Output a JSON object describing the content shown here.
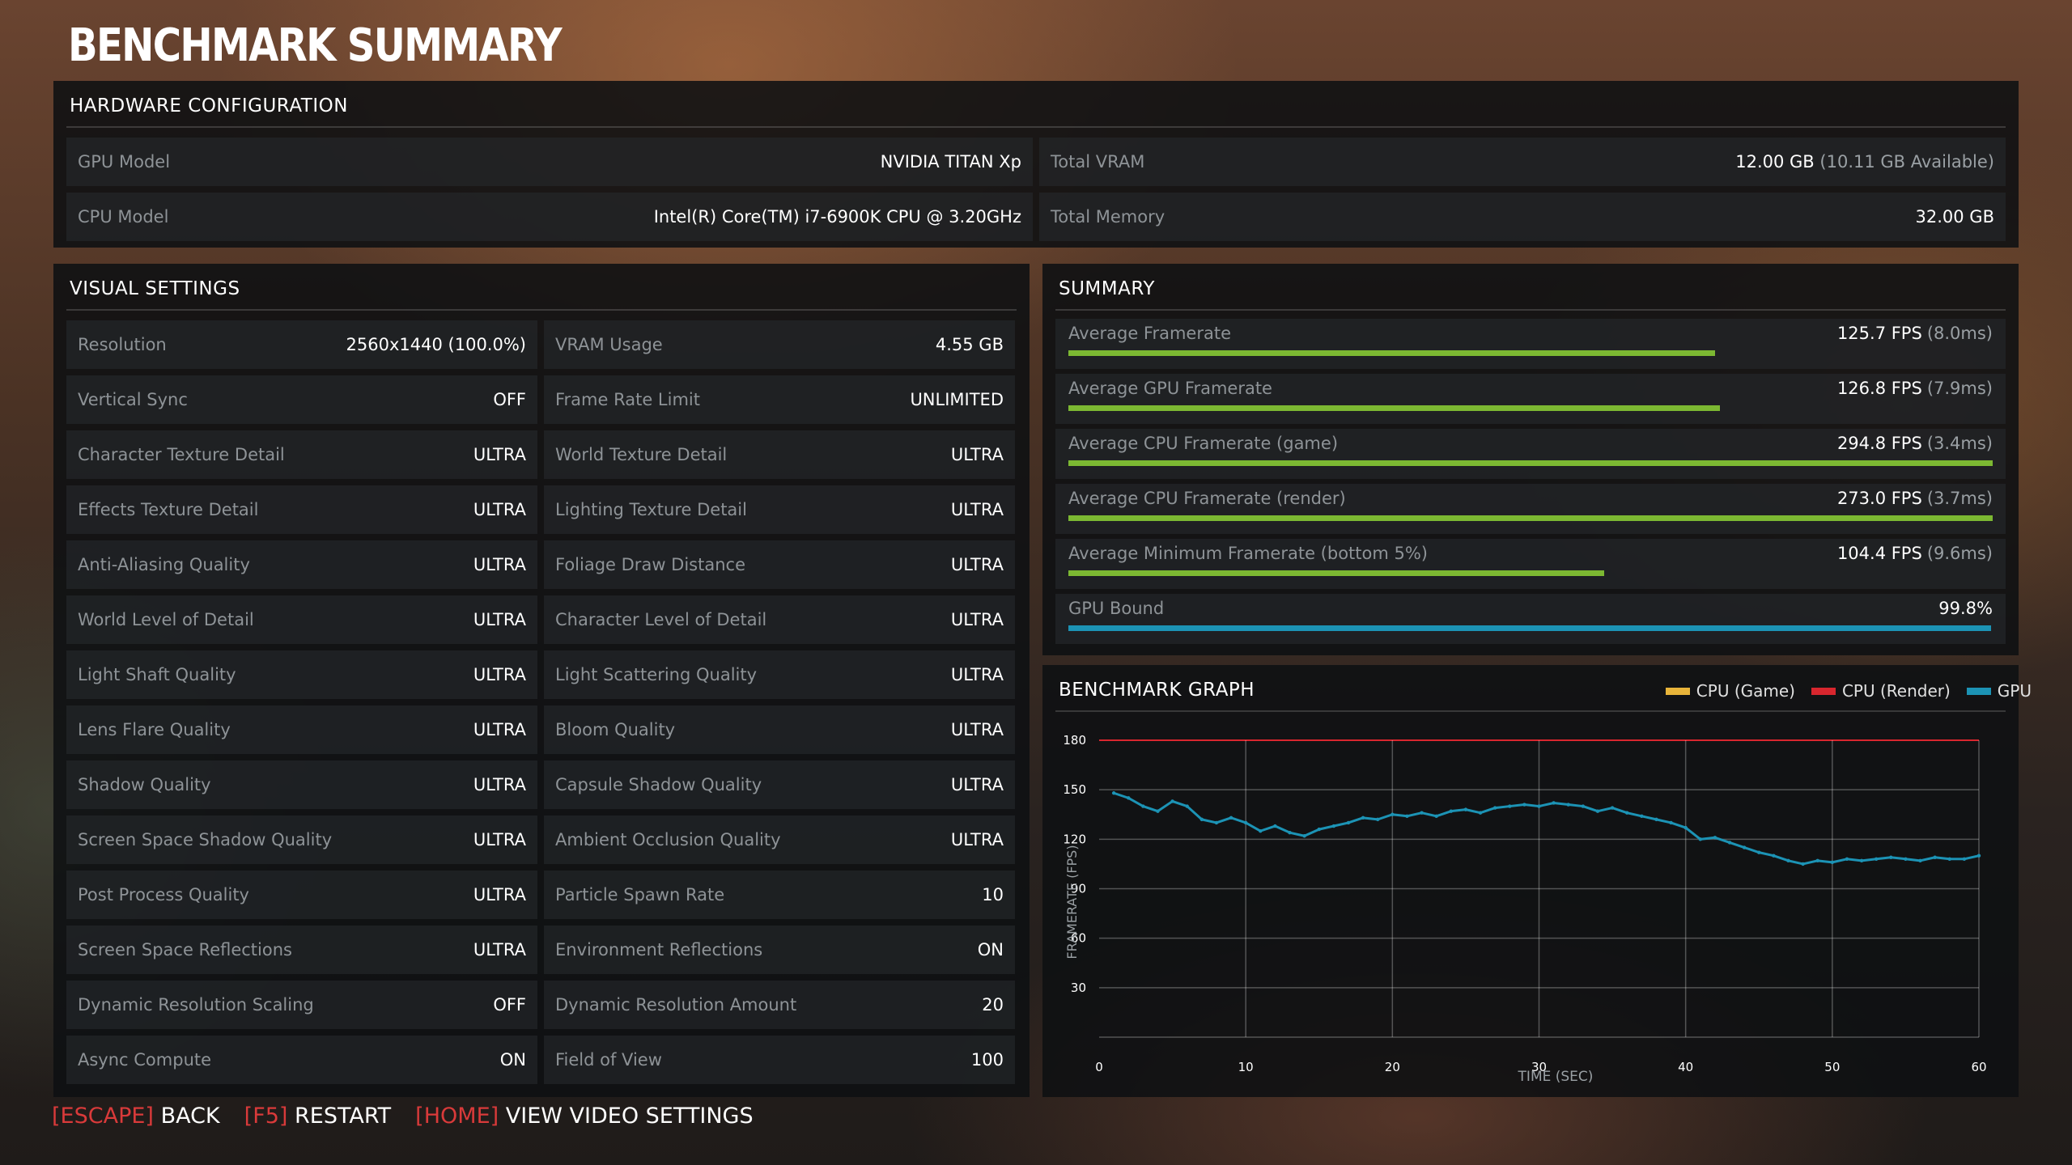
{
  "title": "BENCHMARK SUMMARY",
  "hardware": {
    "title": "HARDWARE CONFIGURATION",
    "gpu_label": "GPU Model",
    "gpu_value": "NVIDIA TITAN Xp",
    "cpu_label": "CPU Model",
    "cpu_value": "Intel(R) Core(TM) i7-6900K CPU @ 3.20GHz",
    "vram_label": "Total VRAM",
    "vram_value": "12.00 GB",
    "vram_sub": "(10.11 GB Available)",
    "mem_label": "Total Memory",
    "mem_value": "32.00 GB"
  },
  "visual": {
    "title": "VISUAL SETTINGS",
    "left": [
      {
        "label": "Resolution",
        "value": "2560x1440 (100.0%)"
      },
      {
        "label": "Vertical Sync",
        "value": "OFF"
      },
      {
        "label": "Character Texture Detail",
        "value": "ULTRA"
      },
      {
        "label": "Effects Texture Detail",
        "value": "ULTRA"
      },
      {
        "label": "Anti-Aliasing Quality",
        "value": "ULTRA"
      },
      {
        "label": "World Level of Detail",
        "value": "ULTRA"
      },
      {
        "label": "Light Shaft Quality",
        "value": "ULTRA"
      },
      {
        "label": "Lens Flare Quality",
        "value": "ULTRA"
      },
      {
        "label": "Shadow Quality",
        "value": "ULTRA"
      },
      {
        "label": "Screen Space Shadow Quality",
        "value": "ULTRA"
      },
      {
        "label": "Post Process Quality",
        "value": "ULTRA"
      },
      {
        "label": "Screen Space Reflections",
        "value": "ULTRA"
      },
      {
        "label": "Dynamic Resolution Scaling",
        "value": "OFF"
      },
      {
        "label": "Async Compute",
        "value": "ON"
      }
    ],
    "right": [
      {
        "label": "VRAM Usage",
        "value": "4.55 GB"
      },
      {
        "label": "Frame Rate Limit",
        "value": "UNLIMITED"
      },
      {
        "label": "World Texture Detail",
        "value": "ULTRA"
      },
      {
        "label": "Lighting Texture Detail",
        "value": "ULTRA"
      },
      {
        "label": "Foliage Draw Distance",
        "value": "ULTRA"
      },
      {
        "label": "Character Level of Detail",
        "value": "ULTRA"
      },
      {
        "label": "Light Scattering Quality",
        "value": "ULTRA"
      },
      {
        "label": "Bloom Quality",
        "value": "ULTRA"
      },
      {
        "label": "Capsule Shadow Quality",
        "value": "ULTRA"
      },
      {
        "label": "Ambient Occlusion Quality",
        "value": "ULTRA"
      },
      {
        "label": "Particle Spawn Rate",
        "value": "10"
      },
      {
        "label": "Environment Reflections",
        "value": "ON"
      },
      {
        "label": "Dynamic Resolution Amount",
        "value": "20"
      },
      {
        "label": "Field of View",
        "value": "100"
      }
    ]
  },
  "summary": {
    "title": "SUMMARY",
    "rows": [
      {
        "label": "Average Framerate",
        "value": "125.7 FPS",
        "sub": "(8.0ms)",
        "bar": 0.7,
        "color": "#7cb832"
      },
      {
        "label": "Average GPU Framerate",
        "value": "126.8 FPS",
        "sub": "(7.9ms)",
        "bar": 0.705,
        "color": "#7cb832"
      },
      {
        "label": "Average CPU Framerate (game)",
        "value": "294.8 FPS",
        "sub": "(3.4ms)",
        "bar": 1.0,
        "color": "#7cb832"
      },
      {
        "label": "Average CPU Framerate (render)",
        "value": "273.0 FPS",
        "sub": "(3.7ms)",
        "bar": 1.0,
        "color": "#7cb832"
      },
      {
        "label": "Average Minimum Framerate (bottom 5%)",
        "value": "104.4 FPS",
        "sub": "(9.6ms)",
        "bar": 0.58,
        "color": "#7cb832"
      },
      {
        "label": "GPU Bound",
        "value": "99.8%",
        "sub": "",
        "bar": 0.998,
        "color": "#1c93b5"
      }
    ]
  },
  "graph": {
    "title": "BENCHMARK GRAPH",
    "legend": [
      {
        "name": "CPU (Game)",
        "color": "#e8b43a"
      },
      {
        "name": "CPU (Render)",
        "color": "#d8262e"
      },
      {
        "name": "GPU",
        "color": "#1c93b5"
      }
    ]
  },
  "chart_data": {
    "type": "line",
    "xlabel": "TIME (SEC)",
    "ylabel": "FRAMERATE (FPS)",
    "xlim": [
      0,
      60
    ],
    "ylim": [
      0,
      180
    ],
    "xticks": [
      "0",
      "10",
      "20",
      "30",
      "40",
      "50",
      "60"
    ],
    "yticks": [
      "30",
      "60",
      "90",
      "120",
      "150",
      "180"
    ],
    "threshold_line": 180,
    "series": [
      {
        "name": "GPU",
        "x": [
          1,
          2,
          3,
          4,
          5,
          6,
          7,
          8,
          9,
          10,
          11,
          12,
          13,
          14,
          15,
          16,
          17,
          18,
          19,
          20,
          21,
          22,
          23,
          24,
          25,
          26,
          27,
          28,
          29,
          30,
          31,
          32,
          33,
          34,
          35,
          36,
          37,
          38,
          39,
          40,
          41,
          42,
          43,
          44,
          45,
          46,
          47,
          48,
          49,
          50,
          51,
          52,
          53,
          54,
          55,
          56,
          57,
          58,
          59,
          60
        ],
        "y": [
          148,
          145,
          140,
          137,
          143,
          140,
          132,
          130,
          133,
          130,
          125,
          128,
          124,
          122,
          126,
          128,
          130,
          133,
          132,
          135,
          134,
          136,
          134,
          137,
          138,
          136,
          139,
          140,
          141,
          140,
          142,
          141,
          140,
          137,
          139,
          136,
          134,
          132,
          130,
          127,
          120,
          121,
          118,
          115,
          112,
          110,
          107,
          105,
          107,
          106,
          108,
          107,
          108,
          109,
          108,
          107,
          109,
          108,
          108,
          110
        ]
      }
    ]
  },
  "footer": {
    "items": [
      {
        "key": "ESCAPE",
        "label": "BACK"
      },
      {
        "key": "F5",
        "label": "RESTART"
      },
      {
        "key": "HOME",
        "label": "VIEW VIDEO SETTINGS"
      }
    ]
  }
}
